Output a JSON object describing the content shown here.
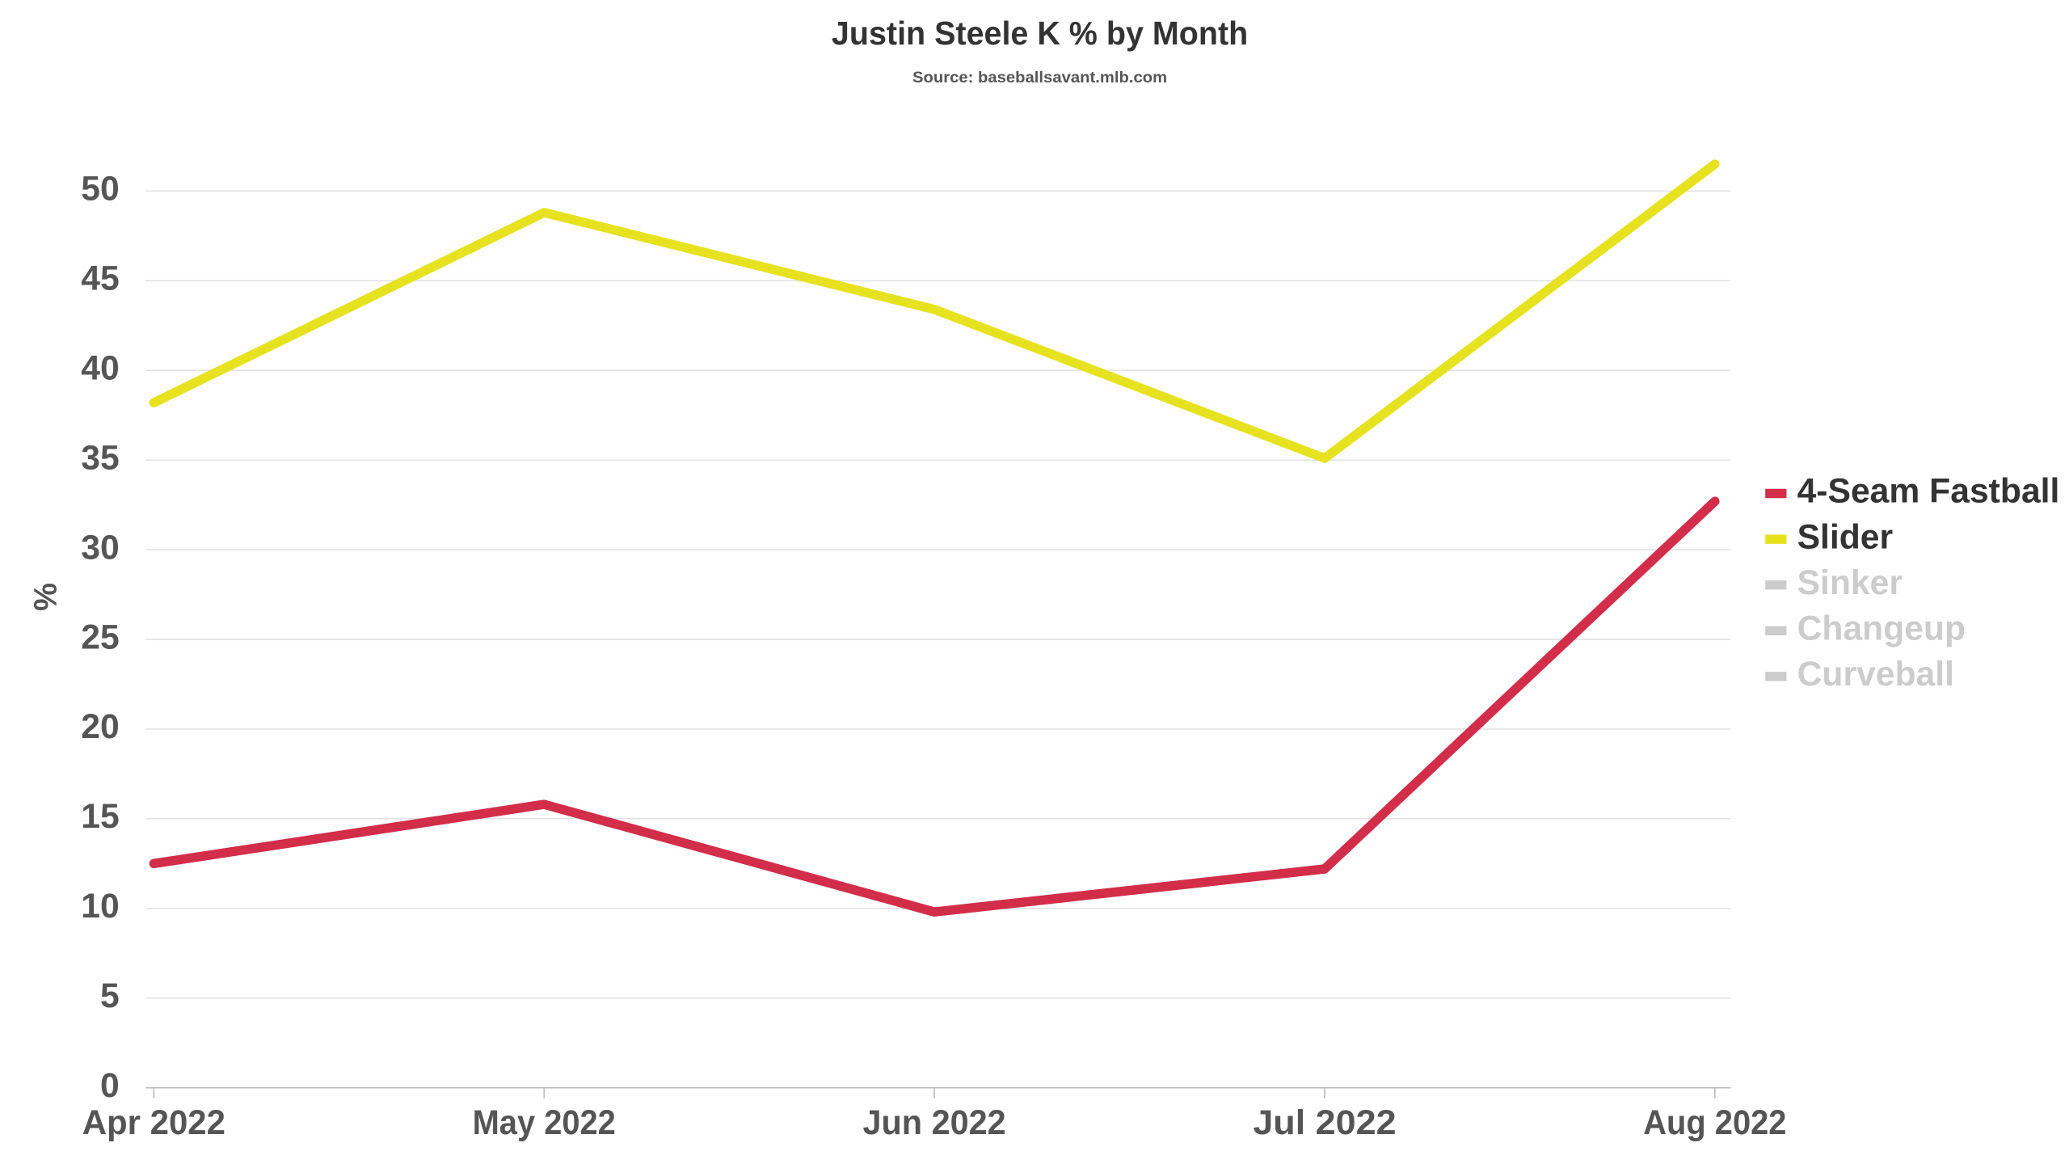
{
  "chart_data": {
    "type": "line",
    "title": "Justin Steele K % by Month",
    "subtitle": "Source: baseballsavant.mlb.com",
    "y_label": "%",
    "categories": [
      "Apr 2022",
      "May 2022",
      "Jun 2022",
      "Jul 2022",
      "Aug 2022"
    ],
    "series": [
      {
        "name": "4-Seam Fastball",
        "color": "#d22d49",
        "values": [
          12.5,
          15.8,
          9.8,
          12.2,
          32.7
        ]
      },
      {
        "name": "Slider",
        "color": "#e6e21f",
        "values": [
          38.2,
          48.8,
          43.4,
          35.1,
          51.5
        ]
      },
      {
        "name": "Sinker",
        "color": "#cccccc",
        "visible": false
      },
      {
        "name": "Changeup",
        "color": "#cccccc",
        "visible": false
      },
      {
        "name": "Curveball",
        "color": "#cccccc",
        "visible": false
      }
    ],
    "ylim": [
      0,
      52
    ],
    "yticks": [
      0,
      5,
      10,
      15,
      20,
      25,
      30,
      35,
      40,
      45,
      50
    ],
    "grid": true,
    "legend": "right"
  }
}
